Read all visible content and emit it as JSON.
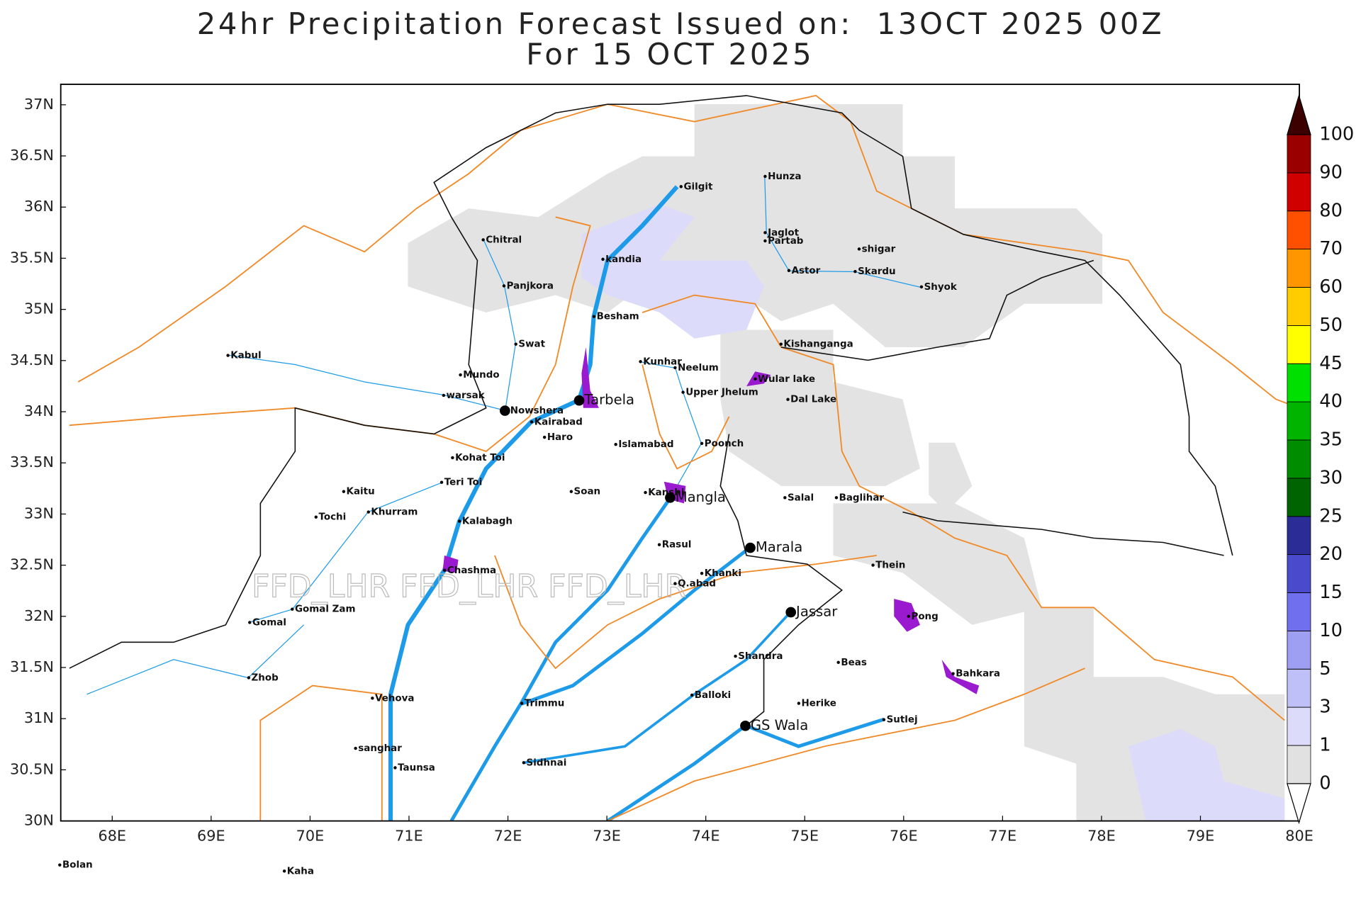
{
  "header": {
    "title": "24hr Precipitation Forecast Issued on:  13OCT 2025 00Z",
    "subtitle": "For 15 OCT 2025"
  },
  "map": {
    "xlim": [
      67.48,
      80
    ],
    "ylim": [
      30,
      37.2
    ],
    "xticks": [
      {
        "value": 68,
        "label": "68E"
      },
      {
        "value": 69,
        "label": "69E"
      },
      {
        "value": 70,
        "label": "70E"
      },
      {
        "value": 71,
        "label": "71E"
      },
      {
        "value": 72,
        "label": "72E"
      },
      {
        "value": 73,
        "label": "73E"
      },
      {
        "value": 74,
        "label": "74E"
      },
      {
        "value": 75,
        "label": "75E"
      },
      {
        "value": 76,
        "label": "76E"
      },
      {
        "value": 77,
        "label": "77E"
      },
      {
        "value": 78,
        "label": "78E"
      },
      {
        "value": 79,
        "label": "79E"
      },
      {
        "value": 80,
        "label": "80E"
      }
    ],
    "yticks": [
      {
        "value": 30,
        "label": "30N"
      },
      {
        "value": 30.5,
        "label": "30.5N"
      },
      {
        "value": 31,
        "label": "31N"
      },
      {
        "value": 31.5,
        "label": "31.5N"
      },
      {
        "value": 32,
        "label": "32N"
      },
      {
        "value": 32.5,
        "label": "32.5N"
      },
      {
        "value": 33,
        "label": "33N"
      },
      {
        "value": 33.5,
        "label": "33.5N"
      },
      {
        "value": 34,
        "label": "34N"
      },
      {
        "value": 34.5,
        "label": "34.5N"
      },
      {
        "value": 35,
        "label": "35N"
      },
      {
        "value": 35.5,
        "label": "35.5N"
      },
      {
        "value": 36,
        "label": "36N"
      },
      {
        "value": 36.5,
        "label": "36.5N"
      },
      {
        "value": 37,
        "label": "37N"
      }
    ],
    "watermark": "FFD_LHR FFD_LHR FFD_LHR",
    "places": [
      {
        "name": "Gilgit",
        "lon": 73.75,
        "lat": 36.2
      },
      {
        "name": "Hunza",
        "lon": 74.6,
        "lat": 36.3
      },
      {
        "name": "Chitral",
        "lon": 71.75,
        "lat": 35.68
      },
      {
        "name": "Jaglot",
        "lon": 74.6,
        "lat": 35.75
      },
      {
        "name": "Partab",
        "lon": 74.6,
        "lat": 35.67
      },
      {
        "name": "shigar",
        "lon": 75.55,
        "lat": 35.59
      },
      {
        "name": "kandia",
        "lon": 72.96,
        "lat": 35.49
      },
      {
        "name": "Astor",
        "lon": 74.84,
        "lat": 35.38
      },
      {
        "name": "Skardu",
        "lon": 75.51,
        "lat": 35.37
      },
      {
        "name": "Panjkora",
        "lon": 71.96,
        "lat": 35.23
      },
      {
        "name": "Shyok",
        "lon": 76.18,
        "lat": 35.22
      },
      {
        "name": "Besham",
        "lon": 72.87,
        "lat": 34.93
      },
      {
        "name": "Swat",
        "lon": 72.08,
        "lat": 34.66
      },
      {
        "name": "Kishanganga",
        "lon": 74.76,
        "lat": 34.66
      },
      {
        "name": "Kabul",
        "lon": 69.17,
        "lat": 34.55
      },
      {
        "name": "Kunhar",
        "lon": 73.34,
        "lat": 34.49
      },
      {
        "name": "Neelum",
        "lon": 73.69,
        "lat": 34.43
      },
      {
        "name": "Mundo",
        "lon": 71.52,
        "lat": 34.36
      },
      {
        "name": "Wular lake",
        "lon": 74.5,
        "lat": 34.32
      },
      {
        "name": "Upper Jhelum",
        "lon": 73.77,
        "lat": 34.19
      },
      {
        "name": "warsak",
        "lon": 71.35,
        "lat": 34.16
      },
      {
        "name": "Dal Lake",
        "lon": 74.83,
        "lat": 34.12
      },
      {
        "name": "Kairabad",
        "lon": 72.24,
        "lat": 33.9
      },
      {
        "name": "Haro",
        "lon": 72.37,
        "lat": 33.75
      },
      {
        "name": "Islamabad",
        "lon": 73.09,
        "lat": 33.68
      },
      {
        "name": "Poonch",
        "lon": 73.96,
        "lat": 33.69
      },
      {
        "name": "Kohat Toi",
        "lon": 71.44,
        "lat": 33.55
      },
      {
        "name": "Teri Toi",
        "lon": 71.33,
        "lat": 33.31
      },
      {
        "name": "Kaitu",
        "lon": 70.34,
        "lat": 33.22
      },
      {
        "name": "Soan",
        "lon": 72.64,
        "lat": 33.22
      },
      {
        "name": "Kanshi",
        "lon": 73.39,
        "lat": 33.21
      },
      {
        "name": "Salal",
        "lon": 74.8,
        "lat": 33.16
      },
      {
        "name": "Baglihar",
        "lon": 75.32,
        "lat": 33.16
      },
      {
        "name": "Tochi",
        "lon": 70.06,
        "lat": 32.97
      },
      {
        "name": "Khurram",
        "lon": 70.59,
        "lat": 33.02
      },
      {
        "name": "Kalabagh",
        "lon": 71.51,
        "lat": 32.93
      },
      {
        "name": "Rasul",
        "lon": 73.53,
        "lat": 32.7
      },
      {
        "name": "Thein",
        "lon": 75.69,
        "lat": 32.5
      },
      {
        "name": "Khanki",
        "lon": 73.96,
        "lat": 32.42
      },
      {
        "name": "Q.abad",
        "lon": 73.69,
        "lat": 32.32
      },
      {
        "name": "Chashma",
        "lon": 71.36,
        "lat": 32.45
      },
      {
        "name": "Gomal Zam",
        "lon": 69.82,
        "lat": 32.07
      },
      {
        "name": "Pong",
        "lon": 76.05,
        "lat": 32.0
      },
      {
        "name": "Gomal",
        "lon": 69.39,
        "lat": 31.94
      },
      {
        "name": "Shandra",
        "lon": 74.3,
        "lat": 31.61
      },
      {
        "name": "Beas",
        "lon": 75.34,
        "lat": 31.55
      },
      {
        "name": "Zhob",
        "lon": 69.38,
        "lat": 31.4
      },
      {
        "name": "Bahkara",
        "lon": 76.5,
        "lat": 31.44
      },
      {
        "name": "Balloki",
        "lon": 73.86,
        "lat": 31.23
      },
      {
        "name": "Vehova",
        "lon": 70.63,
        "lat": 31.2
      },
      {
        "name": "Trimmu",
        "lon": 72.14,
        "lat": 31.15
      },
      {
        "name": "Herike",
        "lon": 74.94,
        "lat": 31.15
      },
      {
        "name": "Sutlej",
        "lon": 75.8,
        "lat": 30.99
      },
      {
        "name": "sanghar",
        "lon": 70.46,
        "lat": 30.71
      },
      {
        "name": "Taunsa",
        "lon": 70.86,
        "lat": 30.52
      },
      {
        "name": "Sidhnai",
        "lon": 72.16,
        "lat": 30.57
      },
      {
        "name": "Bolan",
        "lon": 67.47,
        "lat": 29.57
      },
      {
        "name": "Kaha",
        "lon": 69.74,
        "lat": 29.51
      }
    ],
    "stations": [
      {
        "name": "Nowshera",
        "lon": 71.97,
        "lat": 34.01
      },
      {
        "name": "Tarbela",
        "lon": 72.72,
        "lat": 34.11
      },
      {
        "name": "Mangla",
        "lon": 73.64,
        "lat": 33.16
      },
      {
        "name": "Marala",
        "lon": 74.45,
        "lat": 32.67
      },
      {
        "name": "Jassar",
        "lon": 74.86,
        "lat": 32.04
      },
      {
        "name": "GS Wala",
        "lon": 74.4,
        "lat": 30.93
      }
    ]
  },
  "legend": {
    "levels": [
      0,
      1,
      3,
      5,
      10,
      15,
      20,
      25,
      30,
      35,
      40,
      45,
      50,
      60,
      70,
      80,
      90,
      100
    ],
    "colors": [
      "#e1e1e1",
      "#dcdcfa",
      "#c0c0f8",
      "#9e9ef2",
      "#7070ee",
      "#4a4acc",
      "#2c2c96",
      "#006400",
      "#008c00",
      "#00b400",
      "#00e000",
      "#ffff00",
      "#ffcc00",
      "#ff9600",
      "#ff5000",
      "#d00000",
      "#9a0000"
    ],
    "over_color": "#3c0000",
    "under_color": "#ffffff"
  }
}
